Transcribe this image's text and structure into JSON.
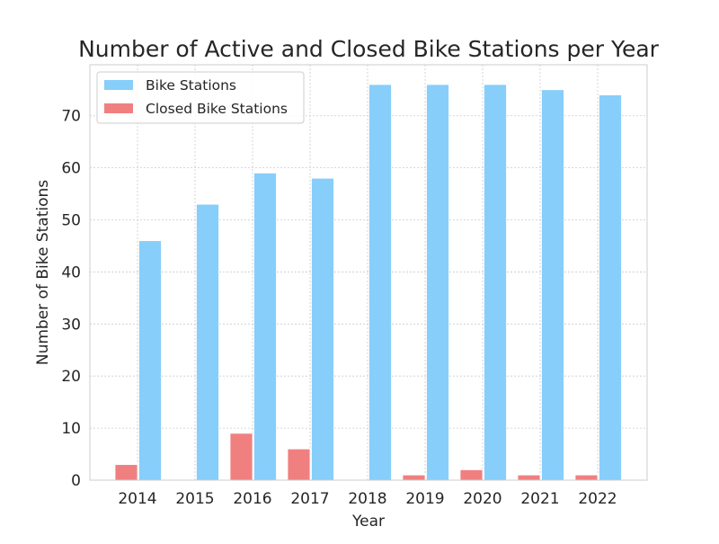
{
  "chart_data": {
    "type": "bar",
    "title": "Number of Active and Closed Bike Stations per Year",
    "xlabel": "Year",
    "ylabel": "Number of Bike Stations",
    "categories": [
      "2014",
      "2015",
      "2016",
      "2017",
      "2018",
      "2019",
      "2020",
      "2021",
      "2022"
    ],
    "series": [
      {
        "name": "Bike Stations",
        "color": "#87CEFA",
        "values": [
          46,
          53,
          59,
          58,
          76,
          76,
          76,
          75,
          74
        ]
      },
      {
        "name": "Closed Bike Stations",
        "color": "#F08080",
        "values": [
          3,
          0,
          9,
          6,
          0,
          1,
          2,
          1,
          1
        ]
      }
    ],
    "ylim": [
      0,
      80
    ],
    "yticks": [
      0,
      10,
      20,
      30,
      40,
      50,
      60,
      70
    ],
    "grid": true,
    "legend_position": "top-left"
  }
}
